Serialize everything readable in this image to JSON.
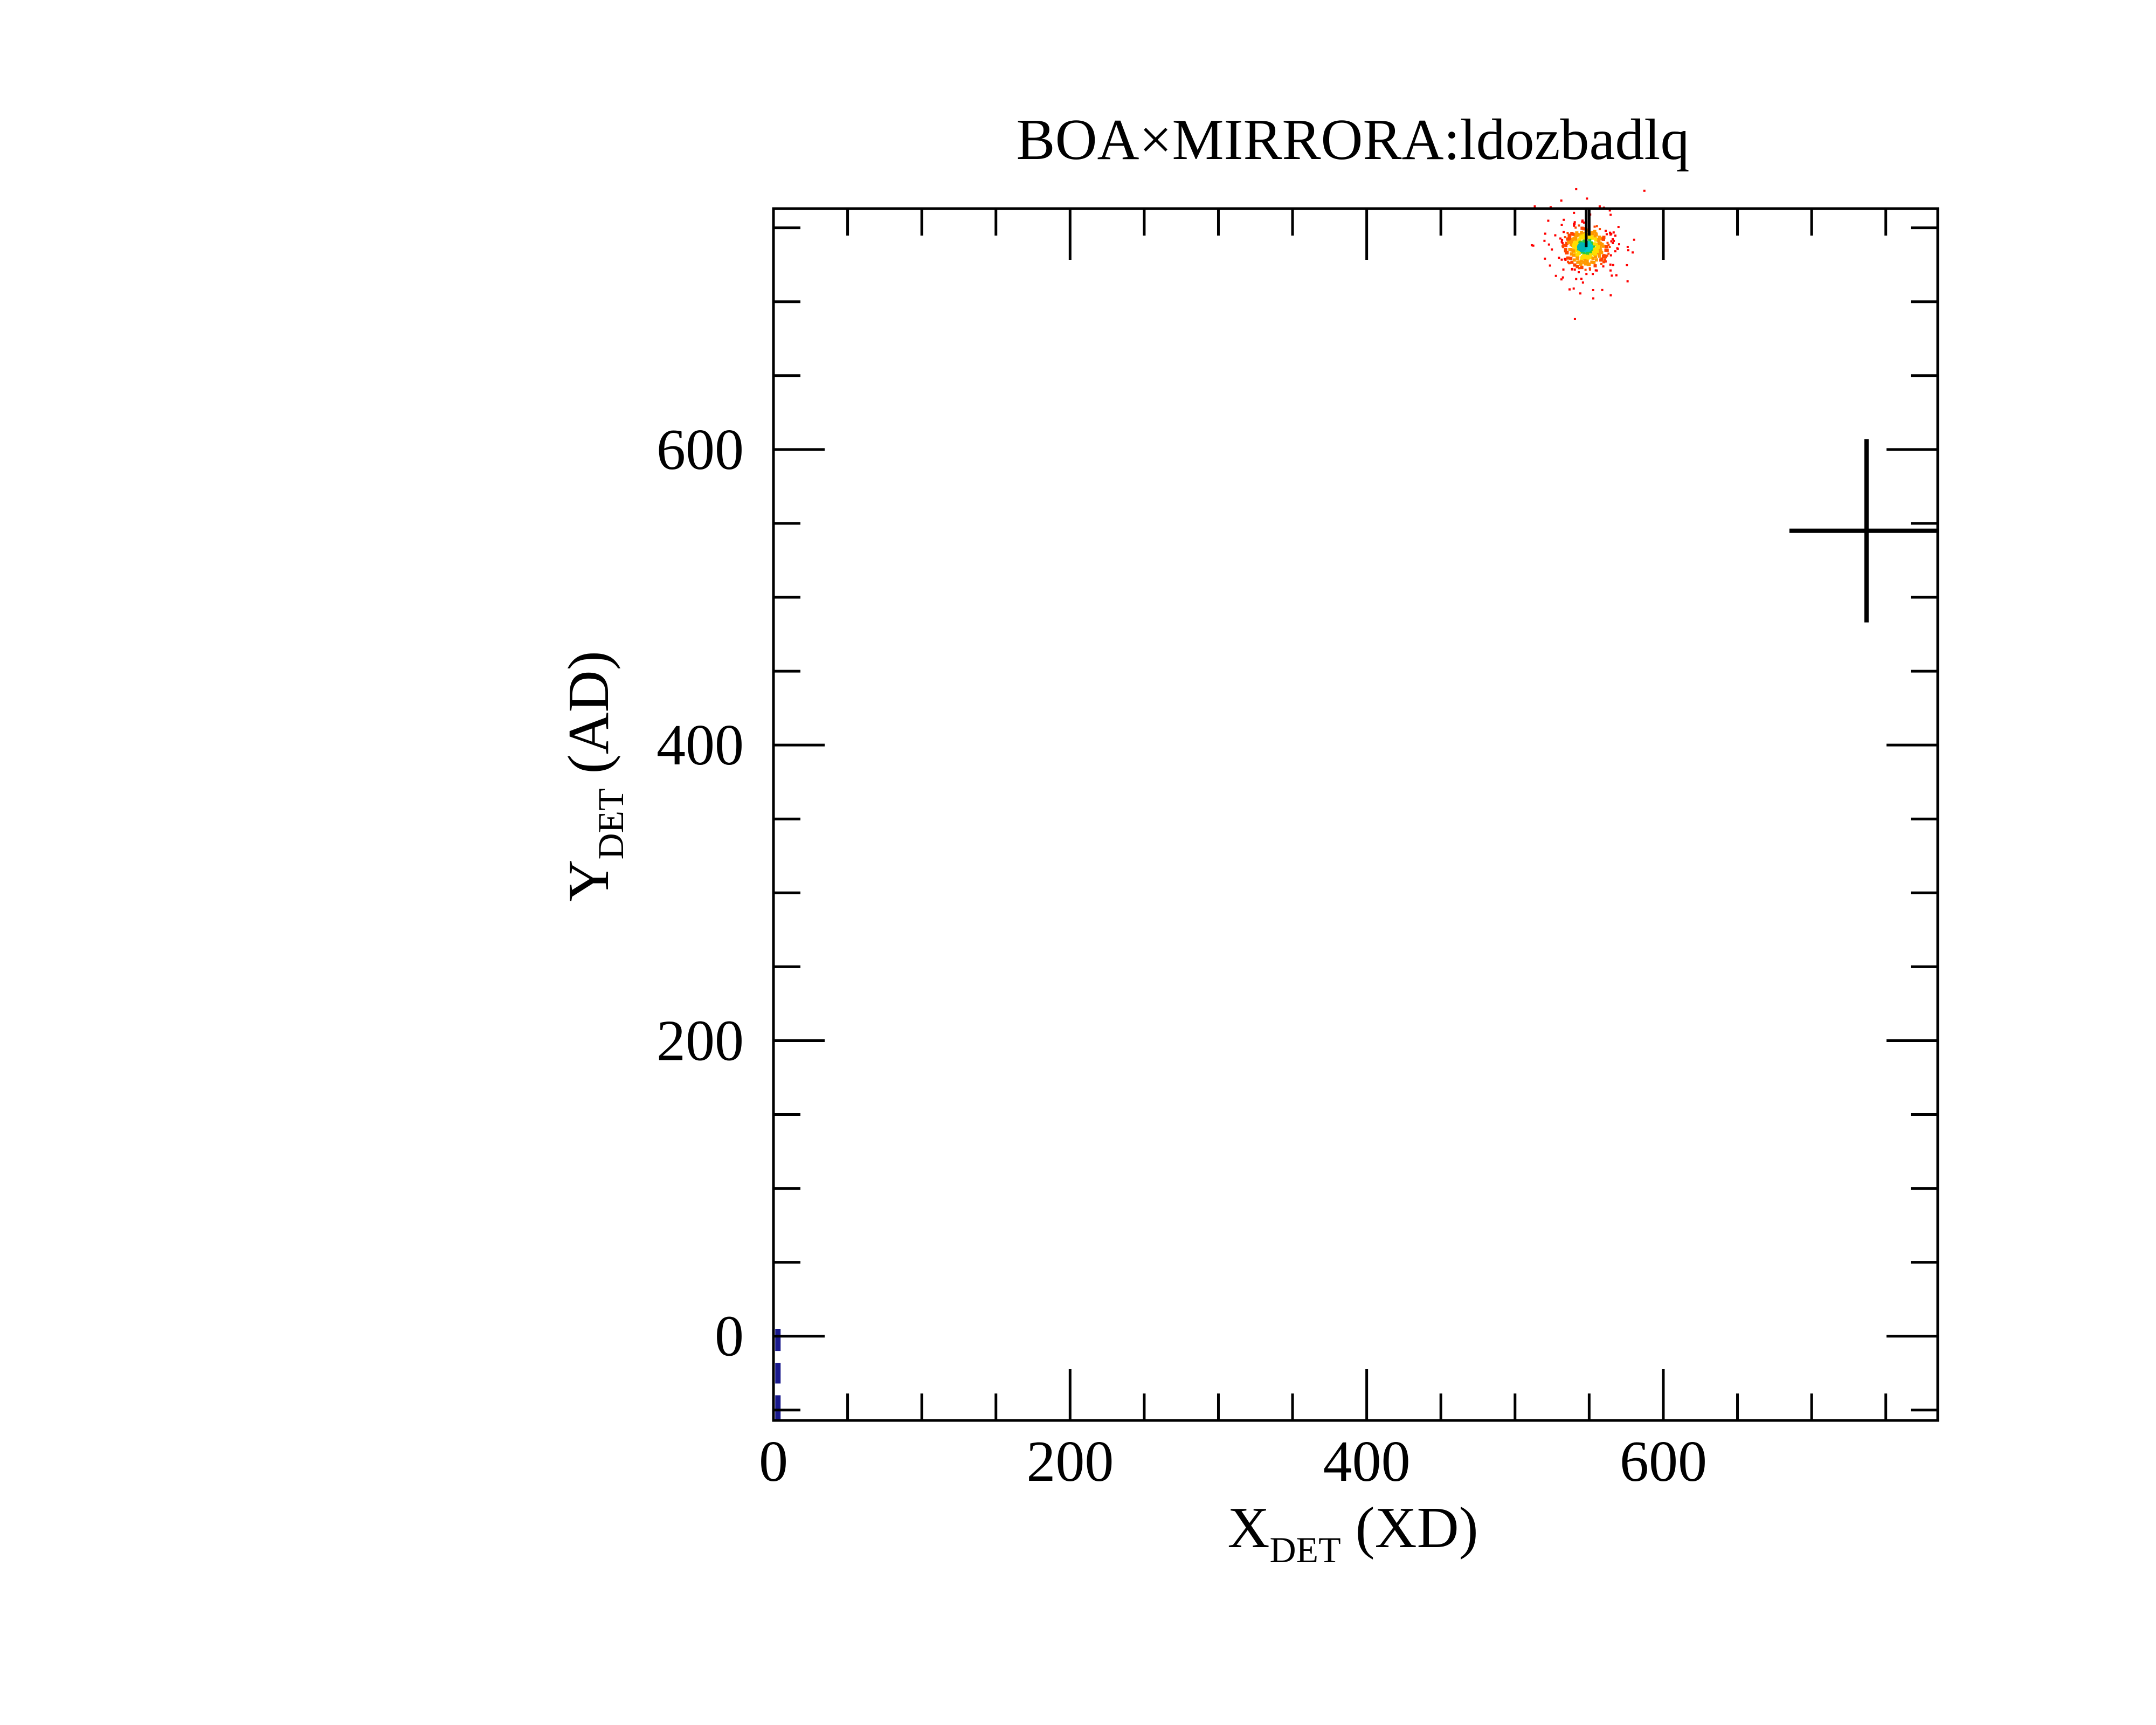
{
  "chart_data": {
    "type": "scatter",
    "title": "BOA×MIRRORA:ldozbadlq",
    "xlabel": {
      "main": "X",
      "sub": "DET",
      "unit": "(XD)"
    },
    "ylabel": {
      "main": "Y",
      "sub": "DET",
      "unit": "(AD)"
    },
    "xlim": [
      0,
      785
    ],
    "ylim": [
      -57,
      763
    ],
    "x_ticks": [
      0,
      200,
      400,
      600
    ],
    "y_ticks": [
      0,
      200,
      400,
      600
    ],
    "x_minor_step": 50,
    "y_minor_step": 50,
    "grid": false,
    "legend": "none",
    "cluster": {
      "center": [
        548,
        737
      ],
      "points_approx": 400,
      "colors": [
        "#ff0000",
        "#ff4400",
        "#ff9900",
        "#ffdd00",
        "#33cc33",
        "#00cccc"
      ],
      "core_color": "#00b4b4"
    },
    "crosshair": {
      "x": 737,
      "y": 545,
      "half_width_x": 52,
      "half_height_y": 62,
      "color": "#000000"
    },
    "marker_line": {
      "x": 548,
      "y_from": 763,
      "y_to": 737,
      "color": "#000000"
    },
    "edge_markers": [
      {
        "x": 3,
        "y_from": -10,
        "y_to": 5,
        "color": "#1a1a8c"
      },
      {
        "x": 3,
        "y_from": -32,
        "y_to": -18,
        "color": "#1a1a8c"
      },
      {
        "x": 3,
        "y_from": -57,
        "y_to": -40,
        "color": "#1a1a8c"
      }
    ]
  }
}
